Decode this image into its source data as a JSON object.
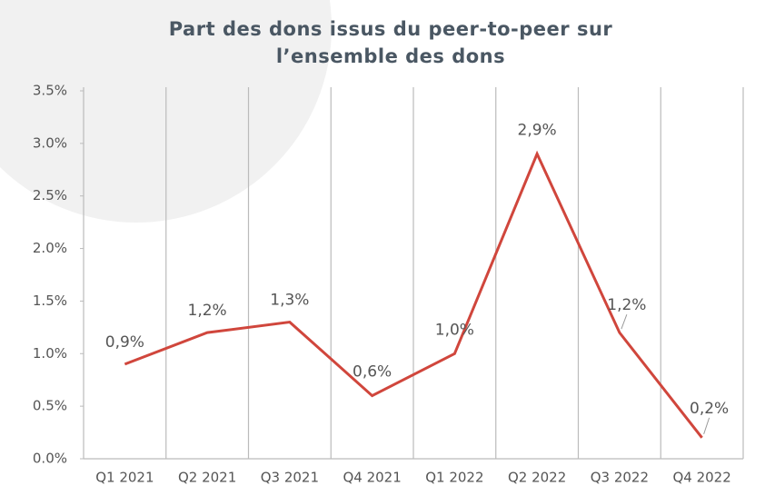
{
  "chart_data": {
    "type": "line",
    "title": [
      "Part des dons issus du peer-to-peer sur",
      "l’ensemble des dons"
    ],
    "categories": [
      "Q1 2021",
      "Q2 2021",
      "Q3 2021",
      "Q4 2021",
      "Q1 2022",
      "Q2 2022",
      "Q3 2022",
      "Q4 2022"
    ],
    "series": [
      {
        "color": "#d0463c",
        "values": [
          0.9,
          1.2,
          1.3,
          0.6,
          1.0,
          2.9,
          1.2,
          0.2
        ],
        "value_labels": [
          "0,9%",
          "1,2%",
          "1,3%",
          "0,6%",
          "1,0%",
          "2,9%",
          "1,2%",
          "0,2%"
        ]
      }
    ],
    "ylim": [
      0,
      3.5
    ],
    "yticks": [
      {
        "value": 0,
        "label": "0.0%"
      },
      {
        "value": 0.5,
        "label": "0.5%"
      },
      {
        "value": 1,
        "label": "1.0%"
      },
      {
        "value": 1.5,
        "label": "1.5%"
      },
      {
        "value": 2,
        "label": "2.0%"
      },
      {
        "value": 2.5,
        "label": "2.5%"
      },
      {
        "value": 3,
        "label": "3.0%"
      },
      {
        "value": 3.5,
        "label": "3.5%"
      }
    ]
  }
}
